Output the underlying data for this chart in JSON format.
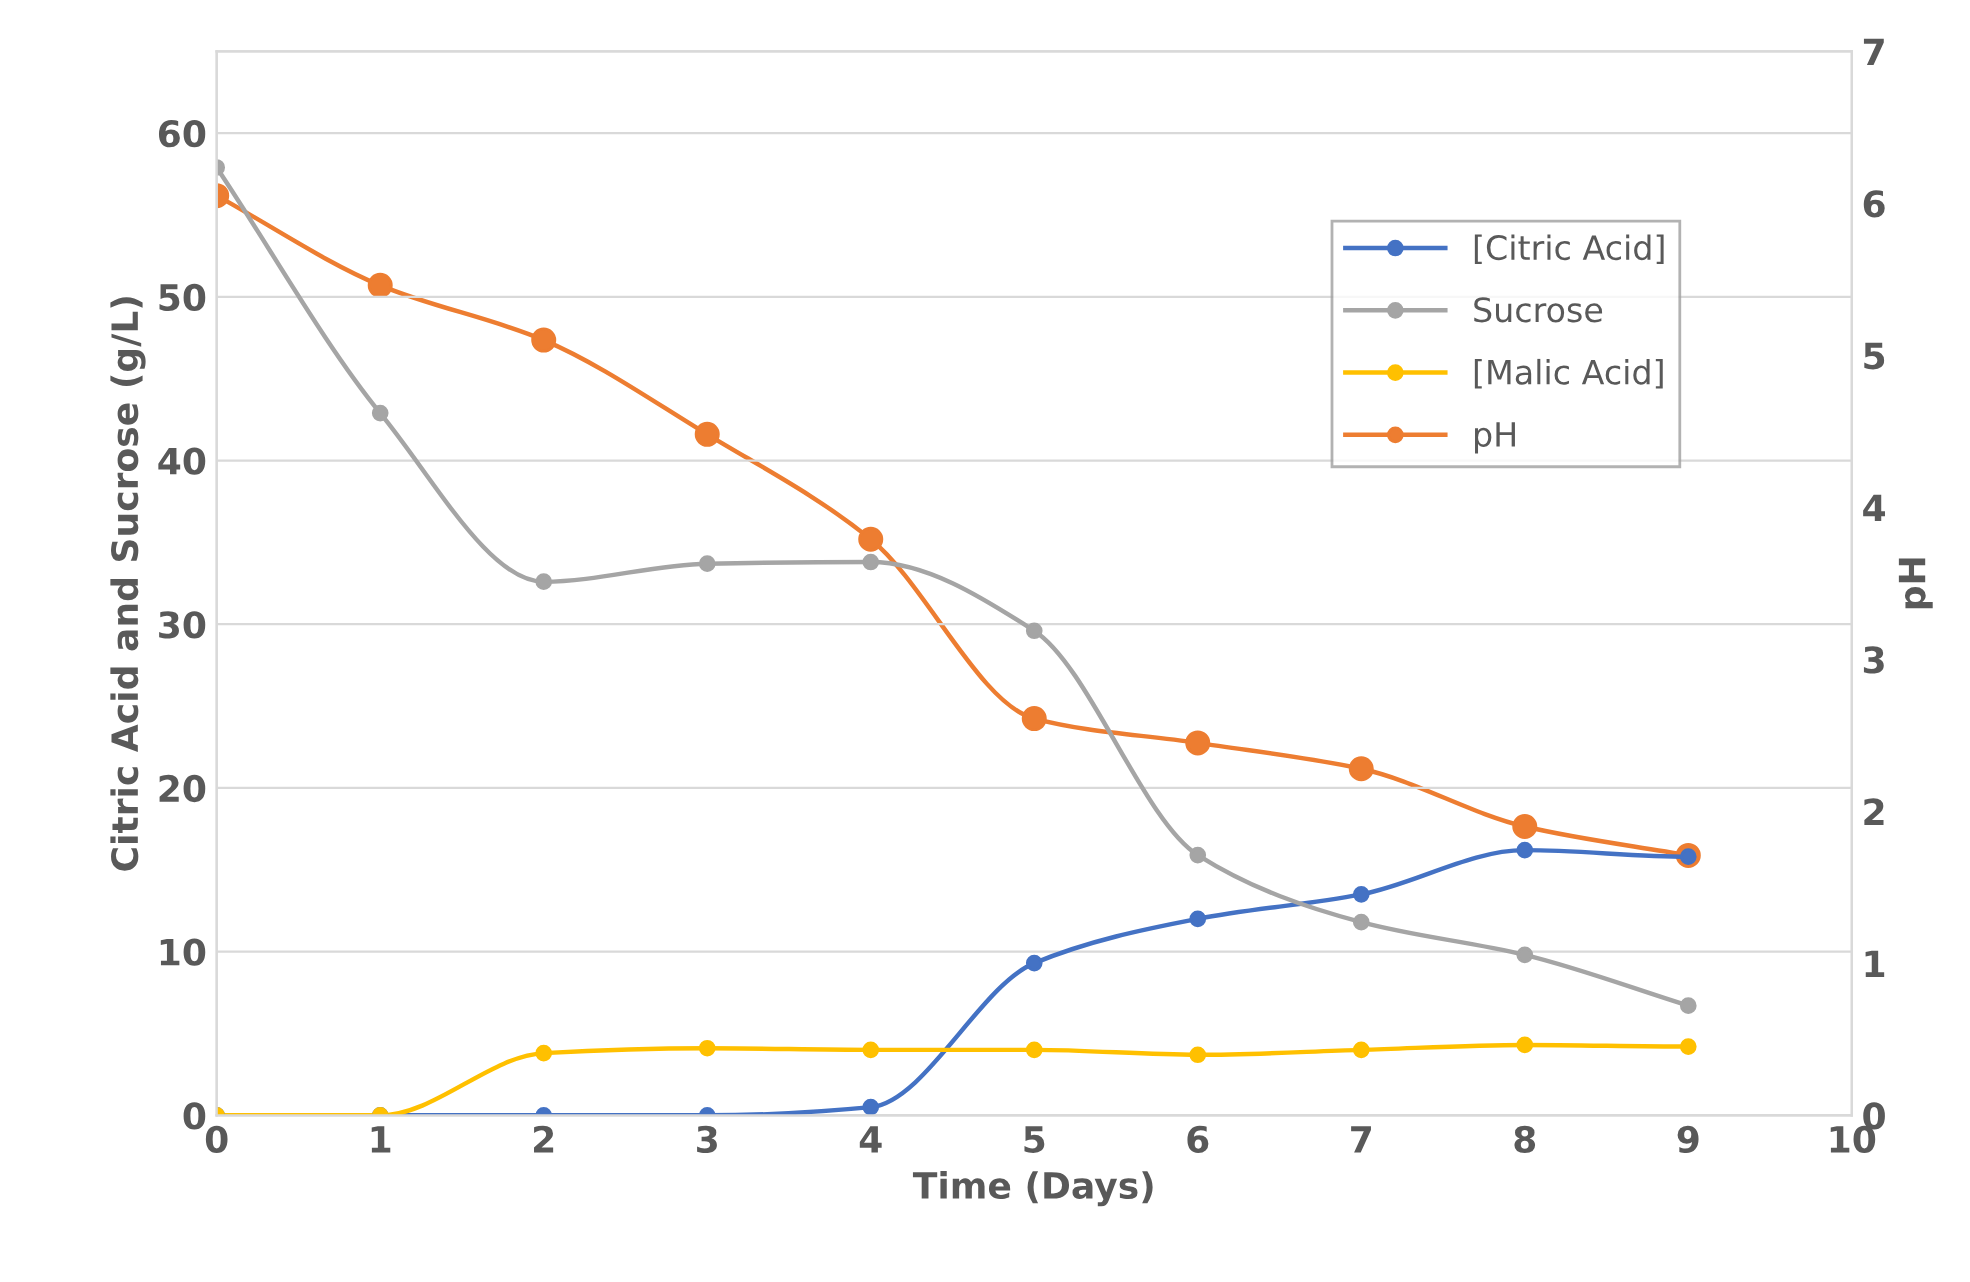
{
  "chart_data": {
    "type": "line",
    "xlabel": "Time (Days)",
    "ylabel": "Citric Acid and Sucrose (g/L)",
    "y2label": "pH",
    "x": [
      0,
      1,
      2,
      3,
      4,
      5,
      6,
      7,
      8,
      9
    ],
    "xlim": [
      0,
      10
    ],
    "xticks": [
      0,
      1,
      2,
      3,
      4,
      5,
      6,
      7,
      8,
      9,
      10
    ],
    "ylim": [
      0,
      65
    ],
    "yticks": [
      0,
      10,
      20,
      30,
      40,
      50,
      60
    ],
    "y2lim": [
      0,
      7
    ],
    "y2ticks": [
      0,
      1,
      2,
      3,
      4,
      5,
      6,
      7
    ],
    "grid": "y",
    "legend": "right",
    "marker": "circle",
    "line_style": "solid",
    "series": [
      {
        "name": "[Citric Acid]",
        "color": "#4472c4",
        "values": [
          0,
          0,
          0,
          0,
          0.5,
          9.3,
          12.0,
          13.5,
          16.2,
          15.8
        ]
      },
      {
        "name": "Sucrose",
        "color": "#a5a5a5",
        "values": [
          57.9,
          42.9,
          32.6,
          33.7,
          33.8,
          29.6,
          15.9,
          11.8,
          9.8,
          6.7
        ]
      },
      {
        "name": "[Malic Acid]",
        "color": "#ffc000",
        "values": [
          0,
          0,
          3.8,
          4.1,
          4.0,
          4.0,
          3.7,
          4.0,
          4.3,
          4.2
        ]
      },
      {
        "name": "pH",
        "color": "#ed7d31",
        "axis": "y2",
        "values": [
          6.05,
          5.46,
          5.1,
          4.48,
          3.79,
          2.61,
          2.45,
          2.28,
          1.9,
          1.71
        ]
      }
    ]
  }
}
